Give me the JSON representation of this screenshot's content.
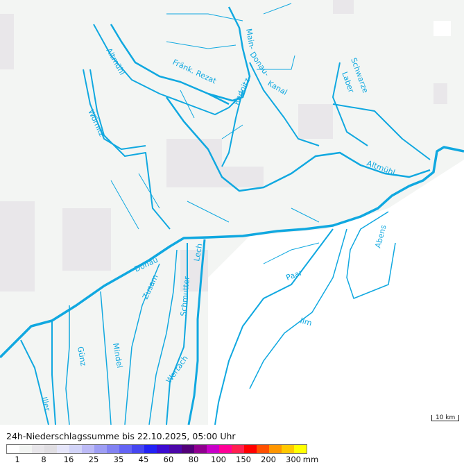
{
  "map": {
    "river_color": "#10a8e0",
    "background_color": "#f3f5f3",
    "rivers": [
      {
        "label": "Altmühl"
      },
      {
        "label": "Fränk. Rezat"
      },
      {
        "label": "Main-"
      },
      {
        "label": "Donau-"
      },
      {
        "label": "Kanal"
      },
      {
        "label": "Rednitz"
      },
      {
        "label": "Wörnitz"
      },
      {
        "label": "Schwarze"
      },
      {
        "label": "Laber"
      },
      {
        "label": "Altmühl"
      },
      {
        "label": "Donau"
      },
      {
        "label": "Zusam"
      },
      {
        "label": "Schmutter"
      },
      {
        "label": "Lech"
      },
      {
        "label": "Paar"
      },
      {
        "label": "Abens"
      },
      {
        "label": "Ilm"
      },
      {
        "label": "Wertach"
      },
      {
        "label": "Mindel"
      },
      {
        "label": "Günz"
      },
      {
        "label": "Iller"
      }
    ],
    "scale_label": "10 km"
  },
  "legend": {
    "title": "24h-Niederschlagssumme bis 22.10.2025, 05:00 Uhr",
    "colors": [
      "#ffffff",
      "#f2f4f2",
      "#e8e6ea",
      "#e0dee2",
      "#e6e6fa",
      "#d2d4f8",
      "#bcbaf6",
      "#9e9ef4",
      "#8282f2",
      "#6464f4",
      "#4646f0",
      "#2222f4",
      "#3c0cd0",
      "#4c08a8",
      "#520078",
      "#900090",
      "#c800c8",
      "#ff0096",
      "#ff2050",
      "#ff0000",
      "#ff5000",
      "#ff9600",
      "#ffc800",
      "#ffff00"
    ],
    "ticks": [
      "1",
      "8",
      "16",
      "25",
      "35",
      "45",
      "60",
      "80",
      "100",
      "150",
      "200",
      "300"
    ],
    "unit": "mm"
  }
}
